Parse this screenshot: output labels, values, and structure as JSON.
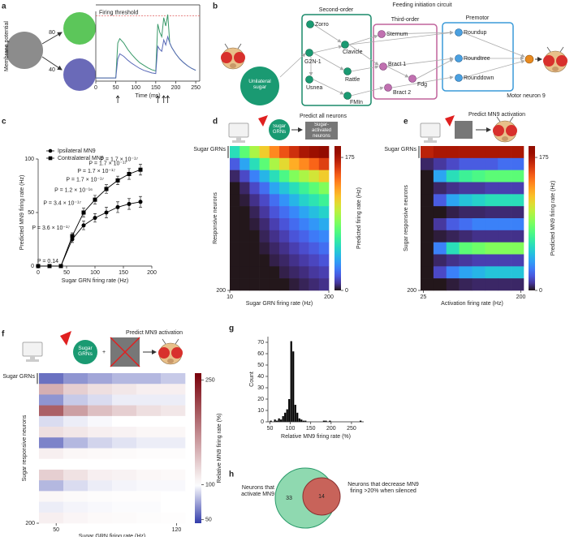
{
  "panel_labels": [
    "a",
    "b",
    "c",
    "d",
    "e",
    "f",
    "g",
    "h"
  ],
  "diagram_a": {
    "weights": [
      80,
      40
    ]
  },
  "diagram_b": {
    "title": "Feeding initiation circuit",
    "input": "Unilateral sugar",
    "output": "Motor neuron 9",
    "groups": [
      {
        "label": "Second-order",
        "nodes": [
          "Zorro",
          "G2N-1",
          "Clavicle",
          "Usnea",
          "Rattle",
          "FMIn"
        ]
      },
      {
        "label": "Third-order",
        "nodes": [
          "Sternum",
          "Bract 1",
          "Fdg",
          "Bract 2"
        ]
      },
      {
        "label": "Premotor",
        "nodes": [
          "Roundup",
          "Roundtree",
          "Rounddown"
        ]
      }
    ]
  },
  "venn": {
    "left_label": "Neurons that activate MN9",
    "right_label": "Neurons that decrease MN9 firing >20% when silenced",
    "only_left": 33,
    "both": 14
  },
  "chart_data": [
    {
      "type": "line",
      "xlabel": "Time (ms)",
      "ylabel": "Membrane potential",
      "threshold_label": "Firing threshold",
      "threshold": 0.98,
      "threshold_color": "#e06060",
      "x": [
        0,
        50,
        55,
        60,
        70,
        80,
        90,
        100,
        110,
        120,
        130,
        140,
        150,
        155,
        160,
        165,
        170,
        175,
        180,
        185,
        190,
        200,
        210,
        220,
        230,
        240,
        250
      ],
      "series": [
        {
          "color": "#3a9a6a",
          "values": [
            0,
            0,
            0.55,
            0.62,
            0.55,
            0.45,
            0.37,
            0.3,
            0.24,
            0.2,
            0.16,
            0.13,
            0.11,
            0.85,
            0.72,
            0.65,
            0.95,
            0.82,
            1.0,
            0.55,
            0.48,
            0.38,
            0.3,
            0.24,
            0.19,
            0.15,
            0.12
          ]
        },
        {
          "color": "#5a6ab8",
          "values": [
            0,
            0,
            0.3,
            0.38,
            0.34,
            0.28,
            0.23,
            0.19,
            0.15,
            0.12,
            0.1,
            0.08,
            0.07,
            0.5,
            0.45,
            0.42,
            0.6,
            0.52,
            0.65,
            0.55,
            0.48,
            0.38,
            0.3,
            0.24,
            0.19,
            0.15,
            0.12
          ]
        }
      ],
      "stimuli": [
        55,
        155,
        170,
        180
      ],
      "xlim": [
        0,
        260
      ],
      "xticks": [
        0,
        50,
        100,
        150,
        200,
        250
      ],
      "ylim": [
        -0.05,
        1.05
      ]
    },
    {
      "type": "line",
      "xlabel": "Sugar GRN firing rate (Hz)",
      "ylabel": "Predicted MN9 firing rate (Hz)",
      "legend": "upper left",
      "x": [
        0,
        20,
        40,
        60,
        80,
        100,
        120,
        140,
        160,
        180
      ],
      "series": [
        {
          "name": "Ipsilateral MN9",
          "color": "#000000",
          "marker": "circle",
          "values": [
            0,
            0,
            0,
            25,
            38,
            45,
            50,
            55,
            58,
            60
          ],
          "errors": [
            0,
            0,
            0,
            3,
            4,
            4,
            5,
            5,
            5,
            5
          ]
        },
        {
          "name": "Contralateral MN9",
          "color": "#000000",
          "marker": "square",
          "values": [
            0,
            0,
            0,
            28,
            50,
            62,
            72,
            80,
            86,
            90
          ],
          "errors": [
            0,
            0,
            0,
            3,
            4,
            4,
            4,
            4,
            5,
            5
          ]
        }
      ],
      "annotations": [
        {
          "x": 40,
          "text": "P = 0.14"
        },
        {
          "x": 60,
          "text": "P = 3.6 × 10⁻¹⁷"
        },
        {
          "x": 80,
          "text": "P = 3.4 × 10⁻¹⁷"
        },
        {
          "x": 100,
          "text": "P = 1.2 × 10⁻¹⁶"
        },
        {
          "x": 120,
          "text": "P = 1.7 × 10⁻¹⁷"
        },
        {
          "x": 140,
          "text": "P = 1.7 × 10⁻¹⁷"
        },
        {
          "x": 160,
          "text": "P = 1.7 × 10⁻¹⁷"
        },
        {
          "x": 180,
          "text": "P = 1.7 × 10⁻¹⁷"
        }
      ],
      "xlim": [
        0,
        200
      ],
      "xticks": [
        0,
        50,
        100,
        150,
        200
      ],
      "ylim": [
        0,
        100
      ],
      "yticks": [
        0,
        50,
        100
      ]
    },
    {
      "type": "heatmap",
      "header": "Predict all neurons",
      "input_label": "Sugar GRNs",
      "output_label": "Sugar-activated neurons",
      "row_label": "Sugar GRNs",
      "xlabel": "Sugar GRN firing rate (Hz)",
      "ylabel": "Responsive neurons",
      "colorbar_label": "Predicted firing rate (Hz)",
      "colormap": "turbo",
      "xlim": [
        10,
        200
      ],
      "xticks": [
        10,
        200
      ],
      "ylim": [
        0,
        200
      ],
      "yticks": [
        200
      ],
      "clim": [
        0,
        190
      ],
      "cticks": [
        0,
        175
      ],
      "values": [
        [
          60,
          80,
          100,
          120,
          140,
          155,
          165,
          175,
          180,
          185
        ],
        [
          20,
          40,
          60,
          80,
          100,
          115,
          130,
          140,
          150,
          160
        ],
        [
          5,
          15,
          30,
          45,
          60,
          75,
          90,
          100,
          110,
          120
        ],
        [
          0,
          5,
          15,
          25,
          40,
          50,
          60,
          70,
          80,
          90
        ],
        [
          0,
          2,
          8,
          15,
          25,
          35,
          45,
          55,
          62,
          70
        ],
        [
          0,
          0,
          4,
          10,
          18,
          25,
          32,
          40,
          48,
          55
        ],
        [
          0,
          0,
          2,
          6,
          12,
          18,
          24,
          30,
          36,
          42
        ],
        [
          0,
          0,
          0,
          4,
          8,
          12,
          18,
          22,
          28,
          32
        ],
        [
          0,
          0,
          0,
          2,
          5,
          8,
          12,
          16,
          20,
          25
        ],
        [
          0,
          0,
          0,
          0,
          3,
          5,
          8,
          11,
          14,
          18
        ],
        [
          0,
          0,
          0,
          0,
          0,
          3,
          5,
          7,
          10,
          12
        ],
        [
          0,
          0,
          0,
          0,
          0,
          0,
          2,
          4,
          6,
          8
        ]
      ]
    },
    {
      "type": "heatmap",
      "header": "Predict MN9 activation",
      "row_label": "Sugar GRNs",
      "xlabel": "Activation firing rate (Hz)",
      "ylabel": "Sugar responsive neurons",
      "colorbar_label": "Predicted MN9 firing rate (Hz)",
      "colormap": "turbo",
      "xlim": [
        20,
        205
      ],
      "xticks": [
        25,
        200
      ],
      "ylim": [
        0,
        200
      ],
      "yticks": [
        200
      ],
      "clim": [
        0,
        190
      ],
      "cticks": [
        0,
        175
      ],
      "values": [
        [
          170,
          175,
          175,
          175,
          175,
          175,
          175,
          175
        ],
        [
          5,
          10,
          15,
          20,
          20,
          20,
          25,
          25
        ],
        [
          0,
          40,
          60,
          70,
          75,
          80,
          80,
          80
        ],
        [
          0,
          5,
          8,
          10,
          10,
          12,
          12,
          12
        ],
        [
          0,
          20,
          40,
          50,
          55,
          60,
          60,
          60
        ],
        [
          0,
          0,
          3,
          5,
          5,
          6,
          6,
          6
        ],
        [
          0,
          10,
          20,
          25,
          30,
          30,
          30,
          30
        ],
        [
          0,
          2,
          4,
          6,
          8,
          8,
          8,
          8
        ],
        [
          0,
          30,
          60,
          80,
          85,
          90,
          90,
          90
        ],
        [
          0,
          5,
          8,
          10,
          12,
          12,
          12,
          12
        ],
        [
          0,
          15,
          30,
          40,
          45,
          50,
          50,
          50
        ],
        [
          0,
          0,
          2,
          4,
          5,
          5,
          5,
          5
        ]
      ]
    },
    {
      "type": "heatmap",
      "header": "Predict MN9 activation",
      "input_label": "Sugar GRNs",
      "operator": "+",
      "row_label": "Sugar GRNs",
      "xlabel": "Sugar GRN firing rate (Hz)",
      "ylabel": "Sugar responsive neurons",
      "colorbar_label": "Relative MN9 firing rate (%)",
      "colormap": "diverging",
      "center": 100,
      "xlim": [
        40,
        125
      ],
      "xticks": [
        50,
        120
      ],
      "ylim": [
        0,
        200
      ],
      "yticks": [
        200
      ],
      "clim": [
        45,
        260
      ],
      "cticks": [
        50,
        100,
        250
      ],
      "values": [
        [
          60,
          70,
          75,
          80,
          80,
          85
        ],
        [
          150,
          130,
          120,
          115,
          110,
          110
        ],
        [
          70,
          85,
          90,
          95,
          95,
          95
        ],
        [
          200,
          160,
          140,
          130,
          120,
          115
        ],
        [
          90,
          95,
          98,
          100,
          100,
          100
        ],
        [
          120,
          115,
          110,
          108,
          105,
          105
        ],
        [
          65,
          80,
          88,
          92,
          95,
          95
        ],
        [
          110,
          105,
          104,
          103,
          102,
          102
        ],
        [
          100,
          100,
          100,
          100,
          100,
          100
        ],
        [
          130,
          118,
          110,
          108,
          105,
          104
        ],
        [
          80,
          90,
          95,
          97,
          98,
          98
        ],
        [
          105,
          103,
          102,
          101,
          101,
          100
        ],
        [
          95,
          97,
          98,
          99,
          99,
          100
        ],
        [
          110,
          106,
          104,
          103,
          102,
          101
        ]
      ]
    },
    {
      "type": "histogram",
      "xlabel": "Relative MN9 firing rate (%)",
      "ylabel": "Count",
      "color": "#000000",
      "bins": [
        45,
        50,
        55,
        60,
        65,
        70,
        75,
        80,
        85,
        90,
        95,
        100,
        105,
        110,
        115,
        120,
        125,
        130,
        135,
        140,
        145,
        150,
        155,
        160,
        165,
        170,
        175,
        180,
        185,
        190,
        195,
        200,
        205,
        210,
        215,
        220,
        225,
        230,
        235,
        240,
        245,
        250,
        255,
        260,
        265,
        270,
        275,
        280
      ],
      "counts": [
        0,
        1,
        0,
        2,
        1,
        3,
        2,
        5,
        8,
        11,
        20,
        71,
        62,
        15,
        8,
        3,
        2,
        1,
        1,
        0,
        0,
        0,
        0,
        0,
        0,
        0,
        0,
        1,
        1,
        0,
        1,
        0,
        0,
        0,
        0,
        0,
        0,
        0,
        0,
        0,
        0,
        0,
        0,
        0,
        0,
        1,
        0
      ],
      "xlim": [
        45,
        280
      ],
      "xticks": [
        50,
        100,
        150,
        200,
        250
      ],
      "ylim": [
        0,
        75
      ],
      "yticks": [
        0,
        10,
        20,
        30,
        40,
        50,
        60,
        70
      ]
    }
  ]
}
